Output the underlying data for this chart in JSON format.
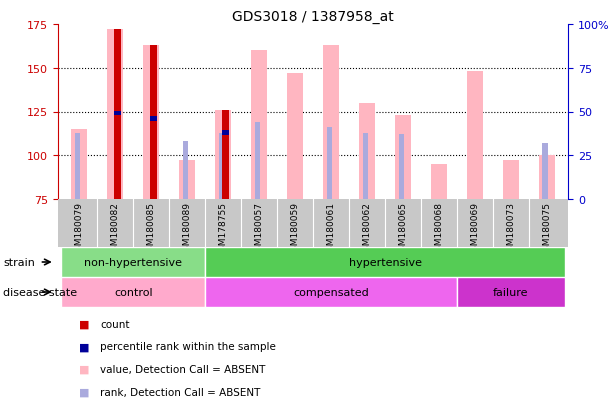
{
  "title": "GDS3018 / 1387958_at",
  "samples": [
    "GSM180079",
    "GSM180082",
    "GSM180085",
    "GSM180089",
    "GSM178755",
    "GSM180057",
    "GSM180059",
    "GSM180061",
    "GSM180062",
    "GSM180065",
    "GSM180068",
    "GSM180069",
    "GSM180073",
    "GSM180075"
  ],
  "value_absent": [
    115,
    172,
    163,
    97,
    126,
    160,
    147,
    163,
    130,
    123,
    95,
    148,
    97,
    100
  ],
  "rank_absent": [
    113,
    null,
    null,
    108,
    113,
    119,
    null,
    116,
    113,
    112,
    null,
    null,
    null,
    107
  ],
  "count_val": [
    null,
    172,
    163,
    null,
    126,
    null,
    null,
    null,
    null,
    null,
    null,
    null,
    null,
    null
  ],
  "percentile_rank": [
    null,
    124,
    121,
    null,
    113,
    null,
    null,
    null,
    null,
    null,
    null,
    null,
    null,
    null
  ],
  "ylim": [
    75,
    175
  ],
  "y2lim": [
    0,
    100
  ],
  "yticks": [
    75,
    100,
    125,
    150,
    175
  ],
  "y2ticks": [
    0,
    25,
    50,
    75,
    100
  ],
  "strain_groups": [
    {
      "label": "non-hypertensive",
      "start": 0,
      "end": 3,
      "color": "#88DD88"
    },
    {
      "label": "hypertensive",
      "start": 4,
      "end": 13,
      "color": "#55CC55"
    }
  ],
  "disease_groups": [
    {
      "label": "control",
      "start": 0,
      "end": 3,
      "color": "#FFAACC"
    },
    {
      "label": "compensated",
      "start": 4,
      "end": 10,
      "color": "#EE66EE"
    },
    {
      "label": "failure",
      "start": 11,
      "end": 13,
      "color": "#CC33CC"
    }
  ],
  "background_color": "#ffffff",
  "axis_label_color": "#CC0000",
  "axis2_label_color": "#0000CC",
  "value_absent_color": "#FFB6C1",
  "rank_absent_color": "#AAAADD",
  "count_color": "#CC0000",
  "percentile_color": "#000099",
  "legend_items": [
    {
      "color": "#CC0000",
      "label": "count"
    },
    {
      "color": "#000099",
      "label": "percentile rank within the sample"
    },
    {
      "color": "#FFB6C1",
      "label": "value, Detection Call = ABSENT"
    },
    {
      "color": "#AAAADD",
      "label": "rank, Detection Call = ABSENT"
    }
  ]
}
